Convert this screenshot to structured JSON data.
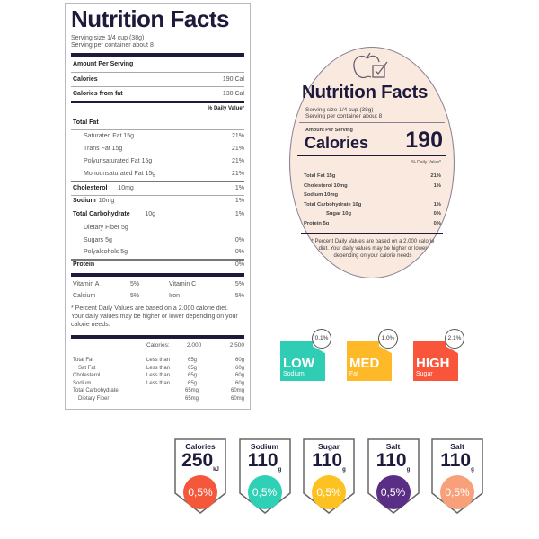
{
  "label1": {
    "title": "Nutrition Facts",
    "serving_size": "Serving size 1/4 cup (38g)",
    "servings": "Serving per container about 8",
    "amount": "Amount Per Serving",
    "calories": "Calories",
    "calories_val": "190 Cal",
    "cal_fat": "Calories from fat",
    "cal_fat_val": "130 Cal",
    "dv": "% Daily Value*",
    "rows": [
      {
        "name": "Total Fat",
        "amt": "",
        "pct": "",
        "bold": true,
        "indent": false
      },
      {
        "name": "Saturated Fat 15g",
        "amt": "",
        "pct": "21%",
        "bold": false,
        "indent": true
      },
      {
        "name": "Trans Fat 15g",
        "amt": "",
        "pct": "21%",
        "bold": false,
        "indent": true
      },
      {
        "name": "Polyunsaturated Fat 15g",
        "amt": "",
        "pct": "21%",
        "bold": false,
        "indent": true
      },
      {
        "name": "Monounsaturated Fat 15g",
        "amt": "",
        "pct": "21%",
        "bold": false,
        "indent": true
      },
      {
        "name": "Cholesterol",
        "amt": "10mg",
        "pct": "1%",
        "bold": true,
        "indent": false
      },
      {
        "name": "Sodium",
        "amt": "10mg",
        "pct": "1%",
        "bold": true,
        "indent": false
      },
      {
        "name": "Total Carbohydrate",
        "amt": "10g",
        "pct": "1%",
        "bold": true,
        "indent": false
      },
      {
        "name": "Dietary Fiber 5g",
        "amt": "",
        "pct": "",
        "bold": false,
        "indent": true
      },
      {
        "name": "Sugars 5g",
        "amt": "",
        "pct": "0%",
        "bold": false,
        "indent": true
      },
      {
        "name": "Polyalcohols 5g",
        "amt": "",
        "pct": "0%",
        "bold": false,
        "indent": true
      },
      {
        "name": "Protein",
        "amt": "",
        "pct": "0%",
        "bold": true,
        "indent": false
      }
    ],
    "vitamins": [
      [
        "Vitamin  A",
        "5%",
        "Vitamin  C",
        "5%"
      ],
      [
        "Calcium",
        "5%",
        "Iron",
        "5%"
      ]
    ],
    "footnote": "* Percent Daily Values are based on a 2.000 calorie diet. Your daily values may be higher or lower depending on your calorie needs.",
    "table_head": [
      "Calories:",
      "2.000",
      "2.500"
    ],
    "table": [
      [
        "Total Fat",
        "Less than",
        "65g",
        "60g"
      ],
      [
        "Sat Fat",
        "Less than",
        "65g",
        "60g"
      ],
      [
        "Cholesterol",
        "Less than",
        "65g",
        "60g"
      ],
      [
        "Sodium",
        "Less than",
        "65g",
        "60g"
      ],
      [
        "Total Carbohydrate",
        "",
        "65mg",
        "60mg"
      ],
      [
        "Dietary Fiber",
        "",
        "65mg",
        "60mg"
      ]
    ]
  },
  "label2": {
    "icon": "apple-check-icon",
    "title": "Nutrition Facts",
    "serving_size": "Serving size 1/4 cup (38g)",
    "servings": "Serving per container about 8",
    "amount": "Amount Per Serving",
    "calories": "Calories",
    "calories_val": "190",
    "dv": "% Daily Value*",
    "rows": [
      [
        "Total Fat 15g",
        "21%"
      ],
      [
        "Cholesterol 10mg",
        "1%"
      ],
      [
        "Sodium 10mg",
        ""
      ],
      [
        "Total Carbohydrate 10g",
        "1%"
      ],
      [
        "Sugar 10g",
        "0%"
      ],
      [
        "Protein 5g",
        "0%"
      ]
    ],
    "footnote": "* Percent Daily Values are based on a 2.000 calorie diet. Your daily values may be higher or lower depending on your calorie needs"
  },
  "badges": [
    {
      "level": "LOW",
      "nutrient": "Sodium",
      "pct": "0,1%",
      "color": "#2fcdb4"
    },
    {
      "level": "MED",
      "nutrient": "Fat",
      "pct": "1,0%",
      "color": "#fdb927"
    },
    {
      "level": "HIGH",
      "nutrient": "Sugar",
      "pct": "2,1%",
      "color": "#f9553a"
    }
  ],
  "shields": [
    {
      "name": "Calories",
      "value": "250",
      "unit": "kJ",
      "pct": "0,5%",
      "color": "#f5573a"
    },
    {
      "name": "Sodium",
      "value": "110",
      "unit": "g",
      "pct": "0,5%",
      "color": "#2fd1b6"
    },
    {
      "name": "Sugar",
      "value": "110",
      "unit": "g",
      "pct": "0,5%",
      "color": "#fdc121"
    },
    {
      "name": "Salt",
      "value": "110",
      "unit": "g",
      "pct": "0,5%",
      "color": "#5b2e86"
    },
    {
      "name": "Salt",
      "value": "110",
      "unit": "g",
      "pct": "0,5%",
      "color": "#f8a07a"
    }
  ]
}
